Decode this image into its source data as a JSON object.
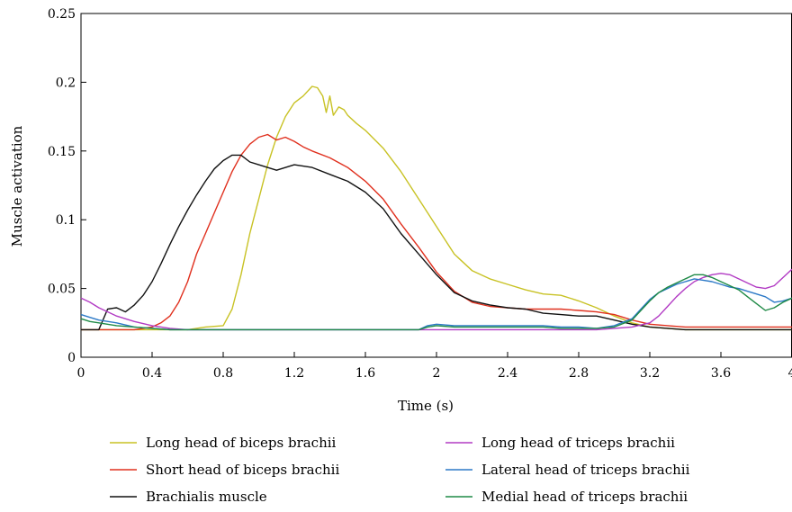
{
  "chart_data": {
    "type": "line",
    "title": "",
    "xlabel": "Time (s)",
    "ylabel": "Muscle activation",
    "xlim": [
      0,
      4
    ],
    "ylim": [
      0,
      0.25
    ],
    "x_ticks": [
      0,
      0.4,
      0.8,
      1.2,
      1.6,
      2,
      2.4,
      2.8,
      3.2,
      3.6,
      4
    ],
    "x_tick_labels": [
      "0",
      "0.4",
      "0.8",
      "1.2",
      "1.6",
      "2",
      "2.4",
      "2.8",
      "3.2",
      "3.6",
      "4"
    ],
    "y_ticks": [
      0,
      0.05,
      0.1,
      0.15,
      0.2,
      0.25
    ],
    "y_tick_labels": [
      "0",
      "0.05",
      "0.1",
      "0.15",
      "0.2",
      "0.25"
    ],
    "grid": false,
    "legend_position": "bottom",
    "series": [
      {
        "name": "Long head of biceps brachii",
        "color": "#c8c224",
        "points": [
          [
            0,
            0.02
          ],
          [
            0.6,
            0.02
          ],
          [
            0.7,
            0.022
          ],
          [
            0.8,
            0.023
          ],
          [
            0.85,
            0.035
          ],
          [
            0.9,
            0.06
          ],
          [
            0.95,
            0.09
          ],
          [
            1.0,
            0.115
          ],
          [
            1.05,
            0.14
          ],
          [
            1.1,
            0.16
          ],
          [
            1.15,
            0.175
          ],
          [
            1.2,
            0.185
          ],
          [
            1.25,
            0.19
          ],
          [
            1.3,
            0.197
          ],
          [
            1.33,
            0.196
          ],
          [
            1.36,
            0.19
          ],
          [
            1.38,
            0.178
          ],
          [
            1.4,
            0.19
          ],
          [
            1.42,
            0.176
          ],
          [
            1.45,
            0.182
          ],
          [
            1.48,
            0.18
          ],
          [
            1.5,
            0.176
          ],
          [
            1.55,
            0.17
          ],
          [
            1.6,
            0.165
          ],
          [
            1.7,
            0.152
          ],
          [
            1.8,
            0.135
          ],
          [
            1.9,
            0.115
          ],
          [
            2.0,
            0.095
          ],
          [
            2.1,
            0.075
          ],
          [
            2.2,
            0.063
          ],
          [
            2.3,
            0.057
          ],
          [
            2.4,
            0.053
          ],
          [
            2.5,
            0.049
          ],
          [
            2.6,
            0.046
          ],
          [
            2.7,
            0.045
          ],
          [
            2.8,
            0.041
          ],
          [
            2.9,
            0.036
          ],
          [
            3.0,
            0.03
          ],
          [
            3.1,
            0.025
          ],
          [
            3.2,
            0.022
          ],
          [
            3.3,
            0.021
          ],
          [
            3.4,
            0.02
          ],
          [
            4.0,
            0.02
          ]
        ]
      },
      {
        "name": "Short head of biceps brachii",
        "color": "#e0301e",
        "points": [
          [
            0,
            0.02
          ],
          [
            0.3,
            0.02
          ],
          [
            0.4,
            0.022
          ],
          [
            0.45,
            0.025
          ],
          [
            0.5,
            0.03
          ],
          [
            0.55,
            0.04
          ],
          [
            0.6,
            0.055
          ],
          [
            0.65,
            0.075
          ],
          [
            0.7,
            0.09
          ],
          [
            0.75,
            0.105
          ],
          [
            0.8,
            0.12
          ],
          [
            0.85,
            0.135
          ],
          [
            0.9,
            0.147
          ],
          [
            0.95,
            0.155
          ],
          [
            1.0,
            0.16
          ],
          [
            1.05,
            0.162
          ],
          [
            1.1,
            0.158
          ],
          [
            1.15,
            0.16
          ],
          [
            1.2,
            0.157
          ],
          [
            1.25,
            0.153
          ],
          [
            1.3,
            0.15
          ],
          [
            1.4,
            0.145
          ],
          [
            1.5,
            0.138
          ],
          [
            1.6,
            0.128
          ],
          [
            1.7,
            0.115
          ],
          [
            1.8,
            0.097
          ],
          [
            1.9,
            0.08
          ],
          [
            2.0,
            0.062
          ],
          [
            2.1,
            0.048
          ],
          [
            2.2,
            0.04
          ],
          [
            2.3,
            0.037
          ],
          [
            2.4,
            0.036
          ],
          [
            2.5,
            0.035
          ],
          [
            2.6,
            0.035
          ],
          [
            2.7,
            0.035
          ],
          [
            2.8,
            0.034
          ],
          [
            2.9,
            0.033
          ],
          [
            3.0,
            0.031
          ],
          [
            3.1,
            0.027
          ],
          [
            3.2,
            0.024
          ],
          [
            3.3,
            0.023
          ],
          [
            3.4,
            0.022
          ],
          [
            3.6,
            0.022
          ],
          [
            4.0,
            0.022
          ]
        ]
      },
      {
        "name": "Brachialis muscle",
        "color": "#111111",
        "points": [
          [
            0,
            0.02
          ],
          [
            0.1,
            0.02
          ],
          [
            0.15,
            0.035
          ],
          [
            0.2,
            0.036
          ],
          [
            0.25,
            0.033
          ],
          [
            0.3,
            0.038
          ],
          [
            0.35,
            0.045
          ],
          [
            0.4,
            0.055
          ],
          [
            0.45,
            0.068
          ],
          [
            0.5,
            0.082
          ],
          [
            0.55,
            0.095
          ],
          [
            0.6,
            0.107
          ],
          [
            0.65,
            0.118
          ],
          [
            0.7,
            0.128
          ],
          [
            0.75,
            0.137
          ],
          [
            0.8,
            0.143
          ],
          [
            0.85,
            0.147
          ],
          [
            0.9,
            0.147
          ],
          [
            0.95,
            0.142
          ],
          [
            1.0,
            0.14
          ],
          [
            1.1,
            0.136
          ],
          [
            1.2,
            0.14
          ],
          [
            1.3,
            0.138
          ],
          [
            1.4,
            0.133
          ],
          [
            1.5,
            0.128
          ],
          [
            1.6,
            0.12
          ],
          [
            1.7,
            0.108
          ],
          [
            1.8,
            0.09
          ],
          [
            1.9,
            0.075
          ],
          [
            2.0,
            0.06
          ],
          [
            2.1,
            0.047
          ],
          [
            2.2,
            0.041
          ],
          [
            2.3,
            0.038
          ],
          [
            2.4,
            0.036
          ],
          [
            2.5,
            0.035
          ],
          [
            2.6,
            0.032
          ],
          [
            2.7,
            0.031
          ],
          [
            2.8,
            0.03
          ],
          [
            2.9,
            0.03
          ],
          [
            3.0,
            0.027
          ],
          [
            3.1,
            0.024
          ],
          [
            3.2,
            0.022
          ],
          [
            3.3,
            0.021
          ],
          [
            3.4,
            0.02
          ],
          [
            4.0,
            0.02
          ]
        ]
      },
      {
        "name": "Long head of triceps brachii",
        "color": "#b23bc4",
        "points": [
          [
            0,
            0.043
          ],
          [
            0.05,
            0.04
          ],
          [
            0.1,
            0.036
          ],
          [
            0.2,
            0.03
          ],
          [
            0.3,
            0.026
          ],
          [
            0.4,
            0.023
          ],
          [
            0.5,
            0.021
          ],
          [
            0.6,
            0.02
          ],
          [
            2.9,
            0.02
          ],
          [
            3.0,
            0.021
          ],
          [
            3.1,
            0.022
          ],
          [
            3.2,
            0.025
          ],
          [
            3.25,
            0.03
          ],
          [
            3.3,
            0.037
          ],
          [
            3.35,
            0.044
          ],
          [
            3.4,
            0.05
          ],
          [
            3.45,
            0.055
          ],
          [
            3.5,
            0.058
          ],
          [
            3.55,
            0.06
          ],
          [
            3.6,
            0.061
          ],
          [
            3.65,
            0.06
          ],
          [
            3.7,
            0.057
          ],
          [
            3.75,
            0.054
          ],
          [
            3.8,
            0.051
          ],
          [
            3.85,
            0.05
          ],
          [
            3.9,
            0.052
          ],
          [
            3.95,
            0.058
          ],
          [
            4.0,
            0.064
          ]
        ]
      },
      {
        "name": "Lateral head of triceps brachii",
        "color": "#2c79c7",
        "points": [
          [
            0,
            0.031
          ],
          [
            0.05,
            0.029
          ],
          [
            0.1,
            0.027
          ],
          [
            0.2,
            0.025
          ],
          [
            0.3,
            0.022
          ],
          [
            0.4,
            0.021
          ],
          [
            0.5,
            0.02
          ],
          [
            1.9,
            0.02
          ],
          [
            1.95,
            0.023
          ],
          [
            2.0,
            0.024
          ],
          [
            2.1,
            0.023
          ],
          [
            2.6,
            0.023
          ],
          [
            2.7,
            0.022
          ],
          [
            2.8,
            0.022
          ],
          [
            2.9,
            0.021
          ],
          [
            3.0,
            0.023
          ],
          [
            3.1,
            0.028
          ],
          [
            3.15,
            0.035
          ],
          [
            3.2,
            0.042
          ],
          [
            3.25,
            0.047
          ],
          [
            3.3,
            0.05
          ],
          [
            3.35,
            0.053
          ],
          [
            3.4,
            0.055
          ],
          [
            3.45,
            0.057
          ],
          [
            3.5,
            0.056
          ],
          [
            3.55,
            0.055
          ],
          [
            3.6,
            0.053
          ],
          [
            3.65,
            0.051
          ],
          [
            3.7,
            0.05
          ],
          [
            3.75,
            0.048
          ],
          [
            3.8,
            0.046
          ],
          [
            3.85,
            0.044
          ],
          [
            3.9,
            0.04
          ],
          [
            3.95,
            0.041
          ],
          [
            4.0,
            0.043
          ]
        ]
      },
      {
        "name": "Medial head of triceps brachii",
        "color": "#1f8a46",
        "points": [
          [
            0,
            0.028
          ],
          [
            0.05,
            0.026
          ],
          [
            0.1,
            0.025
          ],
          [
            0.2,
            0.023
          ],
          [
            0.3,
            0.022
          ],
          [
            0.4,
            0.021
          ],
          [
            0.5,
            0.02
          ],
          [
            1.9,
            0.02
          ],
          [
            1.95,
            0.022
          ],
          [
            2.0,
            0.023
          ],
          [
            2.1,
            0.022
          ],
          [
            2.6,
            0.022
          ],
          [
            2.7,
            0.021
          ],
          [
            2.8,
            0.021
          ],
          [
            2.9,
            0.021
          ],
          [
            3.0,
            0.022
          ],
          [
            3.1,
            0.027
          ],
          [
            3.15,
            0.034
          ],
          [
            3.2,
            0.041
          ],
          [
            3.25,
            0.047
          ],
          [
            3.3,
            0.051
          ],
          [
            3.35,
            0.054
          ],
          [
            3.4,
            0.057
          ],
          [
            3.45,
            0.06
          ],
          [
            3.5,
            0.06
          ],
          [
            3.55,
            0.058
          ],
          [
            3.6,
            0.055
          ],
          [
            3.65,
            0.052
          ],
          [
            3.7,
            0.049
          ],
          [
            3.75,
            0.044
          ],
          [
            3.8,
            0.039
          ],
          [
            3.85,
            0.034
          ],
          [
            3.9,
            0.036
          ],
          [
            3.95,
            0.04
          ],
          [
            4.0,
            0.043
          ]
        ]
      }
    ]
  }
}
